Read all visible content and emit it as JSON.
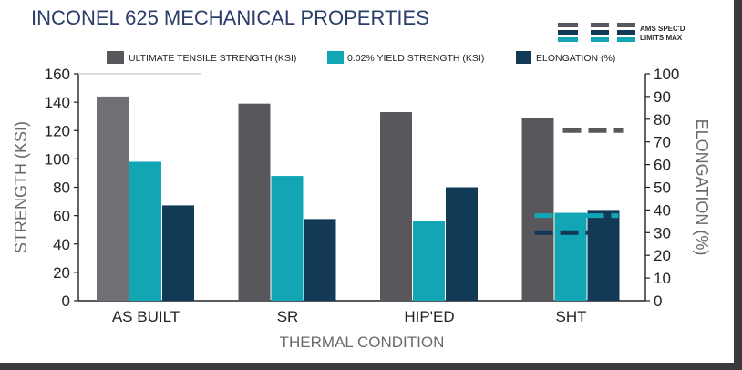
{
  "chart_data": {
    "type": "bar",
    "title": "INCONEL 625 MECHANICAL PROPERTIES",
    "xlabel": "THERMAL CONDITION",
    "ylabel": "STRENGTH (KSI)",
    "y2label": "ELONGATION (%)",
    "categories": [
      "AS BUILT",
      "SR",
      "HIP'ED",
      "SHT"
    ],
    "ylim": [
      0,
      160
    ],
    "yticks": [
      0,
      20,
      40,
      60,
      80,
      100,
      120,
      140,
      160
    ],
    "y2lim": [
      0,
      100
    ],
    "y2ticks": [
      0,
      10,
      20,
      30,
      40,
      50,
      60,
      70,
      80,
      90,
      100
    ],
    "grid": false,
    "legend_position": "top",
    "series": [
      {
        "name": "ULTIMATE TENSILE STRENGTH (KSI)",
        "axis": "left",
        "values": [
          144,
          139,
          133,
          129
        ],
        "color": "#58585c"
      },
      {
        "name": "0.02% YIELD STRENGTH (KSI)",
        "axis": "left",
        "values": [
          98,
          88,
          56,
          62
        ],
        "color": "#12a6b5"
      },
      {
        "name": "ELONGATION (%)",
        "axis": "right",
        "values": [
          42,
          36,
          50,
          40
        ],
        "color": "#123a57"
      }
    ],
    "spec_limits": {
      "legend_labels": [
        "AMS SPEC'D",
        "LIMITS MAX"
      ],
      "category": "SHT",
      "uts_min_ksi": 120,
      "ys_min_ksi": 60,
      "elongation_min_pct": 30
    }
  }
}
